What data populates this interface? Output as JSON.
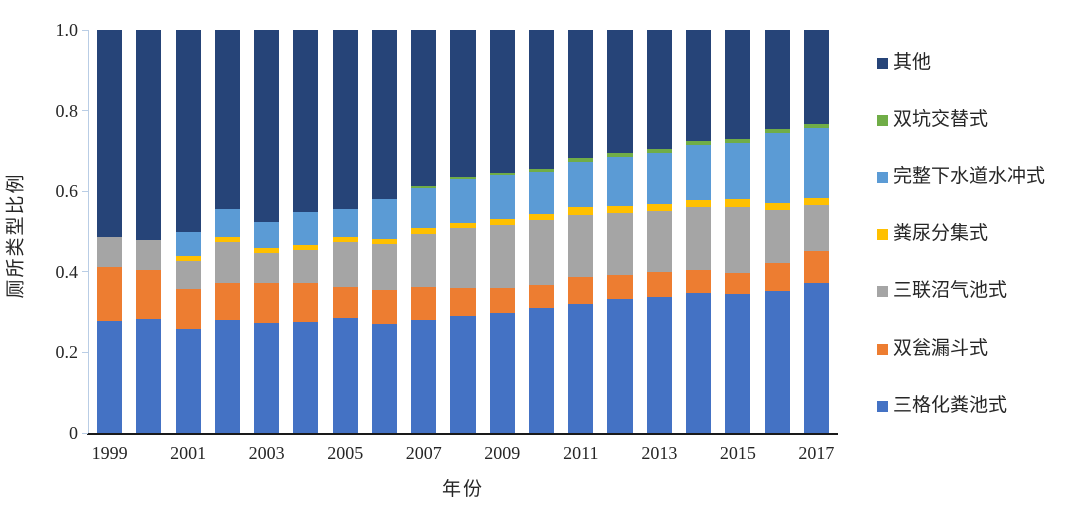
{
  "chart_data": {
    "type": "bar",
    "variant": "stacked-100pct",
    "title": "",
    "xlabel": "年份",
    "ylabel": "厕所类型比例",
    "ylim": [
      0,
      1.0
    ],
    "grid": false,
    "legend_position": "right",
    "ytick_labels": [
      "0",
      "0.2",
      "0.4",
      "0.6",
      "0.8",
      "1.0"
    ],
    "ytick_values": [
      0,
      0.2,
      0.4,
      0.6,
      0.8,
      1.0
    ],
    "xtick_labels": [
      "1999",
      "2001",
      "2003",
      "2005",
      "2007",
      "2009",
      "2011",
      "2013",
      "2015",
      "2017"
    ],
    "categories": [
      1999,
      2000,
      2001,
      2002,
      2003,
      2004,
      2005,
      2006,
      2007,
      2008,
      2009,
      2010,
      2011,
      2012,
      2013,
      2014,
      2015,
      2016,
      2017
    ],
    "series": [
      {
        "name": "三格化粪池式",
        "color": "#4472C4",
        "values": [
          0.278,
          0.282,
          0.257,
          0.281,
          0.272,
          0.276,
          0.285,
          0.27,
          0.28,
          0.29,
          0.299,
          0.311,
          0.32,
          0.333,
          0.337,
          0.348,
          0.345,
          0.353,
          0.373
        ]
      },
      {
        "name": "双瓮漏斗式",
        "color": "#ED7D31",
        "values": [
          0.134,
          0.123,
          0.1,
          0.092,
          0.101,
          0.096,
          0.077,
          0.086,
          0.082,
          0.07,
          0.061,
          0.057,
          0.068,
          0.059,
          0.063,
          0.056,
          0.053,
          0.07,
          0.079
        ]
      },
      {
        "name": "三联沼气池式",
        "color": "#A5A5A5",
        "values": [
          0.075,
          0.073,
          0.07,
          0.101,
          0.074,
          0.083,
          0.113,
          0.113,
          0.132,
          0.148,
          0.156,
          0.161,
          0.153,
          0.155,
          0.152,
          0.156,
          0.164,
          0.13,
          0.113
        ]
      },
      {
        "name": "粪尿分集式",
        "color": "#FFC000",
        "values": [
          0,
          0,
          0.012,
          0.012,
          0.012,
          0.012,
          0.011,
          0.012,
          0.016,
          0.014,
          0.014,
          0.014,
          0.019,
          0.016,
          0.016,
          0.018,
          0.019,
          0.017,
          0.018
        ]
      },
      {
        "name": "完整下水道水冲式",
        "color": "#5B9BD5",
        "values": [
          0,
          0,
          0.06,
          0.07,
          0.065,
          0.081,
          0.07,
          0.099,
          0.098,
          0.108,
          0.11,
          0.105,
          0.112,
          0.123,
          0.126,
          0.136,
          0.139,
          0.174,
          0.174
        ]
      },
      {
        "name": "双坑交替式",
        "color": "#70AD47",
        "values": [
          0,
          0,
          0,
          0,
          0,
          0,
          0,
          0,
          0.004,
          0.005,
          0.005,
          0.008,
          0.01,
          0.01,
          0.01,
          0.01,
          0.01,
          0.01,
          0.011
        ]
      },
      {
        "name": "其他",
        "color": "#264478",
        "values": [
          0.513,
          0.522,
          0.501,
          0.444,
          0.476,
          0.452,
          0.444,
          0.42,
          0.388,
          0.365,
          0.355,
          0.344,
          0.318,
          0.304,
          0.296,
          0.276,
          0.27,
          0.246,
          0.232
        ]
      }
    ],
    "legend_order_top_to_bottom": [
      "其他",
      "双坑交替式",
      "完整下水道水冲式",
      "粪尿分集式",
      "三联沼气池式",
      "双瓮漏斗式",
      "三格化粪池式"
    ]
  },
  "layout_note_values_are_fractions": true
}
